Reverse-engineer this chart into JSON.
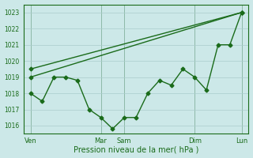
{
  "xlabel": "Pression niveau de la mer( hPa )",
  "ylim": [
    1015.5,
    1023.5
  ],
  "yticks": [
    1016,
    1017,
    1018,
    1019,
    1020,
    1021,
    1022,
    1023
  ],
  "bg_color": "#cce8e8",
  "line_color": "#1a6b1a",
  "grid_color": "#aacccc",
  "xtick_labels": [
    "Ven",
    "Mar",
    "Sam",
    "Dim",
    "Lun"
  ],
  "xtick_positions": [
    0,
    3,
    4,
    7,
    9
  ],
  "vline_positions": [
    0,
    3,
    4,
    7,
    9
  ],
  "wavy_x": [
    0,
    0.5,
    1.0,
    1.5,
    2.0,
    2.5,
    3.0,
    3.5,
    4.0,
    4.5,
    5.0,
    5.5,
    6.0,
    6.5,
    7.0,
    7.5,
    8.0,
    8.5,
    9.0
  ],
  "wavy_y": [
    1018.0,
    1017.5,
    1019.0,
    1019.0,
    1018.8,
    1017.0,
    1016.5,
    1015.8,
    1016.5,
    1016.5,
    1018.0,
    1018.8,
    1018.5,
    1019.5,
    1019.0,
    1018.2,
    1021.0,
    1021.0,
    1023.0
  ],
  "trend1_x": [
    0,
    9.0
  ],
  "trend1_y": [
    1019.0,
    1023.0
  ],
  "trend2_x": [
    0,
    9.0
  ],
  "trend2_y": [
    1019.5,
    1023.0
  ]
}
